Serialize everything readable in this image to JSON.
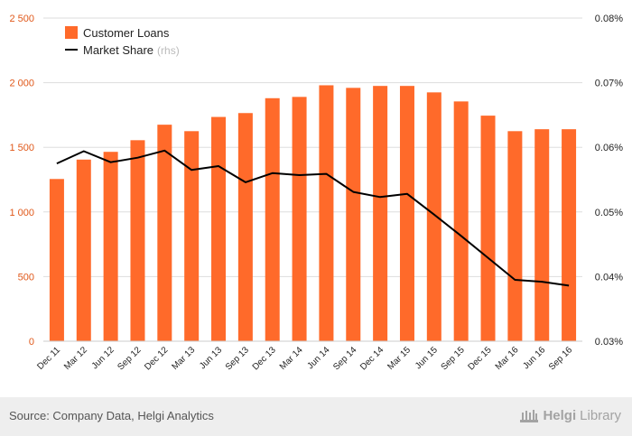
{
  "chart_data": {
    "type": "bar+line",
    "categories": [
      "Dec 11",
      "Mar 12",
      "Jun 12",
      "Sep 12",
      "Dec 12",
      "Mar 13",
      "Jun 13",
      "Sep 13",
      "Dec 13",
      "Mar 14",
      "Jun 14",
      "Sep 14",
      "Dec 14",
      "Mar 15",
      "Jun 15",
      "Sep 15",
      "Dec 15",
      "Mar 16",
      "Jun 16",
      "Sep 16"
    ],
    "series": [
      {
        "name": "Customer Loans",
        "type": "bar",
        "axis": "left",
        "values": [
          1255,
          1405,
          1465,
          1555,
          1675,
          1625,
          1735,
          1765,
          1880,
          1890,
          1980,
          1960,
          1975,
          1975,
          1925,
          1855,
          1745,
          1625,
          1640,
          1640
        ]
      },
      {
        "name": "Market Share",
        "type": "line",
        "axis": "right",
        "values": [
          0.0575,
          0.0594,
          0.0577,
          0.0584,
          0.0595,
          0.0565,
          0.0571,
          0.0546,
          0.056,
          0.0557,
          0.0559,
          0.0531,
          0.0523,
          0.0528,
          0.0496,
          0.0463,
          0.0429,
          0.0395,
          0.0392,
          0.0386
        ]
      }
    ],
    "left_axis": {
      "ticks": [
        "0",
        "500",
        "1 000",
        "1 500",
        "2 000",
        "2 500"
      ],
      "ylim": [
        0,
        2500
      ]
    },
    "right_axis": {
      "ticks": [
        "0.03%",
        "0.04%",
        "0.05%",
        "0.06%",
        "0.07%",
        "0.08%"
      ],
      "ylim": [
        0.03,
        0.08
      ]
    },
    "legend": {
      "placement": "top-left",
      "items": [
        "Customer Loans",
        "Market Share"
      ],
      "suffix": "(rhs)"
    },
    "grid": true,
    "colors": {
      "bar": "#ff6a2a",
      "line": "#000000",
      "grid": "#dddddd",
      "axis_text": "#e0581a"
    }
  },
  "footer": {
    "source": "Source: Company Data, Helgi Analytics",
    "brand_main": "Helgi",
    "brand_light": "Library"
  }
}
